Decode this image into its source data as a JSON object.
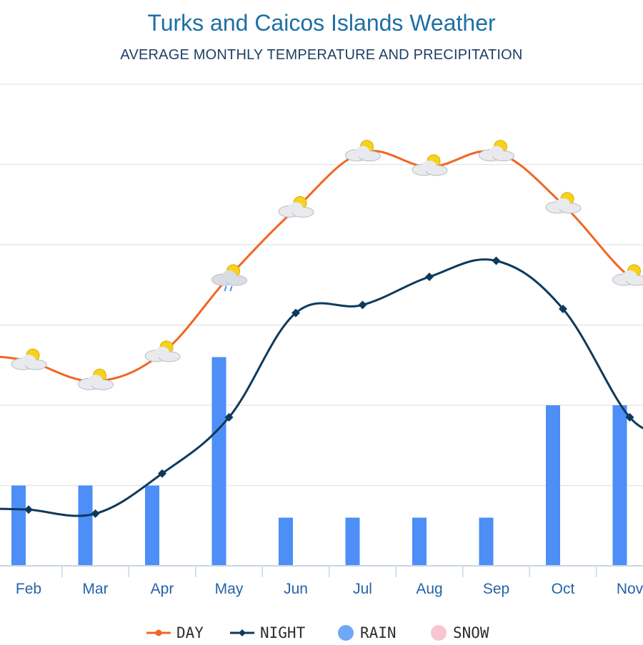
{
  "title": "Turks and Caicos Islands Weather",
  "subtitle": "AVERAGE MONTHLY TEMPERATURE AND PRECIPITATION",
  "legend": {
    "day": "DAY",
    "night": "NIGHT",
    "rain": "RAIN",
    "snow": "SNOW"
  },
  "colors": {
    "day": "#f26522",
    "night": "#0d3a5c",
    "rain": "#4d8ef7",
    "rain_legend": "#6ea8f7",
    "snow": "#f8c6d3",
    "grid": "#e3e3e3",
    "axis": "#c9d6e6"
  },
  "chart_data": {
    "type": "line",
    "categories": [
      "Feb",
      "Mar",
      "Apr",
      "May",
      "Jun",
      "Jul",
      "Aug",
      "Sep",
      "Oct",
      "Nov"
    ],
    "series": [
      {
        "name": "DAY",
        "values": [
          2.55,
          2.3,
          2.65,
          3.6,
          4.45,
          5.15,
          4.97,
          5.15,
          4.5,
          3.6
        ],
        "icons": [
          "partly-cloudy",
          "partly-cloudy",
          "partly-cloudy",
          "rain-shower",
          "partly-cloudy",
          "partly-cloudy",
          "partly-cloudy",
          "partly-cloudy",
          "partly-cloudy",
          "partly-cloudy"
        ]
      },
      {
        "name": "NIGHT",
        "values": [
          0.7,
          0.65,
          1.15,
          1.85,
          3.15,
          3.25,
          3.6,
          3.8,
          3.2,
          1.85
        ]
      },
      {
        "name": "RAIN",
        "values": [
          1,
          1,
          1,
          2.6,
          0.6,
          0.6,
          0.6,
          0.6,
          2,
          2
        ]
      }
    ],
    "ylim": [
      0,
      6
    ]
  }
}
